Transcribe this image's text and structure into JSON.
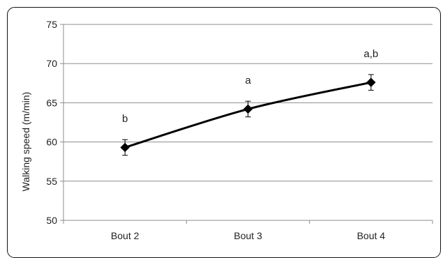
{
  "chart_data": {
    "type": "line",
    "categories": [
      "Bout 2",
      "Bout 3",
      "Bout 4"
    ],
    "series": [
      {
        "values": [
          59.3,
          64.2,
          67.6
        ],
        "error": [
          1.0,
          1.0,
          1.0
        ],
        "labels": [
          "b",
          "a",
          "a,b"
        ],
        "color": "#000000"
      }
    ],
    "ylabel": "Walking speed (m/min)",
    "ylim": [
      50,
      75
    ],
    "yticks": [
      50,
      55,
      60,
      65,
      70,
      75
    ],
    "grid": true,
    "marker": "diamond"
  }
}
